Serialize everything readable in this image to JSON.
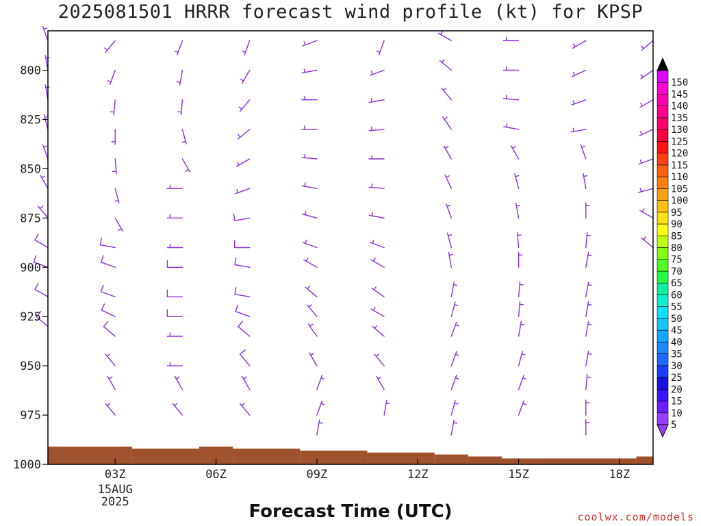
{
  "header": {
    "title": "2025081501 HRRR forecast wind profile (kt) for KPSP",
    "xlabel": "Forecast Time (UTC)",
    "credit": "coolwx.com/models"
  },
  "chart_data": {
    "type": "wind-barb-profile",
    "title": "2025081501 HRRR forecast wind profile (kt) for KPSP",
    "xlabel": "Forecast Time (UTC)",
    "ylabel": "",
    "y_axis": {
      "scale": "pressure (hPa), inverted",
      "range": [
        780,
        1000
      ],
      "ticks": [
        800,
        825,
        850,
        875,
        900,
        925,
        950,
        975,
        1000
      ]
    },
    "x_axis": {
      "range_hours_utc": [
        1,
        19
      ],
      "ticks": [
        {
          "hour": 3,
          "label": "03Z",
          "sublabel": "15AUG",
          "sublabel2": "2025"
        },
        {
          "hour": 6,
          "label": "06Z"
        },
        {
          "hour": 9,
          "label": "09Z"
        },
        {
          "hour": 12,
          "label": "12Z"
        },
        {
          "hour": 15,
          "label": "15Z"
        },
        {
          "hour": 18,
          "label": "18Z"
        }
      ]
    },
    "barb_color": "#8a2be2",
    "ground_color": "#a0522d",
    "surface_pressure": [
      {
        "hour": 1,
        "p": 991
      },
      {
        "hour": 3.5,
        "p": 992
      },
      {
        "hour": 5.5,
        "p": 991
      },
      {
        "hour": 6.5,
        "p": 992
      },
      {
        "hour": 8.5,
        "p": 993
      },
      {
        "hour": 10.5,
        "p": 994
      },
      {
        "hour": 12.5,
        "p": 995
      },
      {
        "hour": 13.5,
        "p": 996
      },
      {
        "hour": 14.5,
        "p": 997
      },
      {
        "hour": 18.5,
        "p": 996
      }
    ],
    "wind_columns": [
      {
        "hour": 1,
        "levels": [
          {
            "p": 785,
            "dir": 340,
            "spd": 5
          },
          {
            "p": 800,
            "dir": 350,
            "spd": 8
          },
          {
            "p": 815,
            "dir": 350,
            "spd": 8
          },
          {
            "p": 830,
            "dir": 345,
            "spd": 8
          },
          {
            "p": 845,
            "dir": 340,
            "spd": 8
          },
          {
            "p": 860,
            "dir": 330,
            "spd": 8
          },
          {
            "p": 875,
            "dir": 320,
            "spd": 8
          },
          {
            "p": 890,
            "dir": 300,
            "spd": 10
          },
          {
            "p": 900,
            "dir": 290,
            "spd": 10
          },
          {
            "p": 915,
            "dir": 300,
            "spd": 10
          },
          {
            "p": 930,
            "dir": 310,
            "spd": 10
          }
        ]
      },
      {
        "hour": 3,
        "levels": [
          {
            "p": 785,
            "dir": 220,
            "spd": 5
          },
          {
            "p": 800,
            "dir": 200,
            "spd": 5
          },
          {
            "p": 815,
            "dir": 185,
            "spd": 5
          },
          {
            "p": 830,
            "dir": 180,
            "spd": 5
          },
          {
            "p": 845,
            "dir": 175,
            "spd": 5
          },
          {
            "p": 860,
            "dir": 165,
            "spd": 5
          },
          {
            "p": 875,
            "dir": 150,
            "spd": 5
          },
          {
            "p": 890,
            "dir": 280,
            "spd": 10
          },
          {
            "p": 900,
            "dir": 290,
            "spd": 10
          },
          {
            "p": 915,
            "dir": 290,
            "spd": 10
          },
          {
            "p": 925,
            "dir": 295,
            "spd": 10
          },
          {
            "p": 935,
            "dir": 310,
            "spd": 10
          },
          {
            "p": 950,
            "dir": 320,
            "spd": 5
          },
          {
            "p": 962,
            "dir": 330,
            "spd": 5
          },
          {
            "p": 975,
            "dir": 320,
            "spd": 5
          }
        ]
      },
      {
        "hour": 5,
        "levels": [
          {
            "p": 785,
            "dir": 200,
            "spd": 5
          },
          {
            "p": 800,
            "dir": 190,
            "spd": 5
          },
          {
            "p": 815,
            "dir": 185,
            "spd": 5
          },
          {
            "p": 830,
            "dir": 165,
            "spd": 5
          },
          {
            "p": 845,
            "dir": 150,
            "spd": 5
          },
          {
            "p": 860,
            "dir": 270,
            "spd": 5
          },
          {
            "p": 875,
            "dir": 270,
            "spd": 5
          },
          {
            "p": 890,
            "dir": 270,
            "spd": 5
          },
          {
            "p": 900,
            "dir": 270,
            "spd": 10
          },
          {
            "p": 915,
            "dir": 270,
            "spd": 10
          },
          {
            "p": 925,
            "dir": 270,
            "spd": 10
          },
          {
            "p": 935,
            "dir": 270,
            "spd": 5
          },
          {
            "p": 950,
            "dir": 270,
            "spd": 5
          },
          {
            "p": 962,
            "dir": 330,
            "spd": 5
          },
          {
            "p": 975,
            "dir": 320,
            "spd": 5
          }
        ]
      },
      {
        "hour": 7,
        "levels": [
          {
            "p": 785,
            "dir": 200,
            "spd": 5
          },
          {
            "p": 800,
            "dir": 210,
            "spd": 5
          },
          {
            "p": 815,
            "dir": 220,
            "spd": 5
          },
          {
            "p": 830,
            "dir": 230,
            "spd": 5
          },
          {
            "p": 845,
            "dir": 240,
            "spd": 5
          },
          {
            "p": 860,
            "dir": 250,
            "spd": 8
          },
          {
            "p": 875,
            "dir": 260,
            "spd": 10
          },
          {
            "p": 890,
            "dir": 270,
            "spd": 10
          },
          {
            "p": 900,
            "dir": 280,
            "spd": 10
          },
          {
            "p": 915,
            "dir": 280,
            "spd": 10
          },
          {
            "p": 925,
            "dir": 290,
            "spd": 10
          },
          {
            "p": 935,
            "dir": 310,
            "spd": 10
          },
          {
            "p": 950,
            "dir": 320,
            "spd": 10
          },
          {
            "p": 962,
            "dir": 330,
            "spd": 5
          },
          {
            "p": 975,
            "dir": 320,
            "spd": 5
          }
        ]
      },
      {
        "hour": 9,
        "levels": [
          {
            "p": 785,
            "dir": 250,
            "spd": 5
          },
          {
            "p": 800,
            "dir": 260,
            "spd": 5
          },
          {
            "p": 815,
            "dir": 270,
            "spd": 5
          },
          {
            "p": 830,
            "dir": 270,
            "spd": 5
          },
          {
            "p": 845,
            "dir": 275,
            "spd": 5
          },
          {
            "p": 860,
            "dir": 280,
            "spd": 5
          },
          {
            "p": 875,
            "dir": 285,
            "spd": 5
          },
          {
            "p": 890,
            "dir": 290,
            "spd": 5
          },
          {
            "p": 900,
            "dir": 300,
            "spd": 5
          },
          {
            "p": 915,
            "dir": 310,
            "spd": 5
          },
          {
            "p": 925,
            "dir": 320,
            "spd": 5
          },
          {
            "p": 935,
            "dir": 325,
            "spd": 5
          },
          {
            "p": 950,
            "dir": 330,
            "spd": 5
          },
          {
            "p": 962,
            "dir": 20,
            "spd": 5
          },
          {
            "p": 975,
            "dir": 20,
            "spd": 5
          },
          {
            "p": 985,
            "dir": 10,
            "spd": 5
          }
        ]
      },
      {
        "hour": 11,
        "levels": [
          {
            "p": 785,
            "dir": 200,
            "spd": 5
          },
          {
            "p": 800,
            "dir": 250,
            "spd": 5
          },
          {
            "p": 815,
            "dir": 260,
            "spd": 5
          },
          {
            "p": 830,
            "dir": 265,
            "spd": 5
          },
          {
            "p": 845,
            "dir": 270,
            "spd": 5
          },
          {
            "p": 860,
            "dir": 275,
            "spd": 5
          },
          {
            "p": 875,
            "dir": 280,
            "spd": 5
          },
          {
            "p": 890,
            "dir": 290,
            "spd": 5
          },
          {
            "p": 900,
            "dir": 300,
            "spd": 5
          },
          {
            "p": 915,
            "dir": 305,
            "spd": 5
          },
          {
            "p": 925,
            "dir": 300,
            "spd": 5
          },
          {
            "p": 935,
            "dir": 310,
            "spd": 5
          },
          {
            "p": 950,
            "dir": 320,
            "spd": 5
          },
          {
            "p": 962,
            "dir": 330,
            "spd": 5
          },
          {
            "p": 975,
            "dir": 10,
            "spd": 5
          }
        ]
      },
      {
        "hour": 13,
        "levels": [
          {
            "p": 785,
            "dir": 300,
            "spd": 5
          },
          {
            "p": 800,
            "dir": 310,
            "spd": 5
          },
          {
            "p": 815,
            "dir": 320,
            "spd": 5
          },
          {
            "p": 830,
            "dir": 325,
            "spd": 5
          },
          {
            "p": 845,
            "dir": 330,
            "spd": 5
          },
          {
            "p": 860,
            "dir": 335,
            "spd": 5
          },
          {
            "p": 875,
            "dir": 340,
            "spd": 5
          },
          {
            "p": 890,
            "dir": 345,
            "spd": 5
          },
          {
            "p": 900,
            "dir": 350,
            "spd": 5
          },
          {
            "p": 915,
            "dir": 10,
            "spd": 5
          },
          {
            "p": 925,
            "dir": 15,
            "spd": 5
          },
          {
            "p": 935,
            "dir": 20,
            "spd": 5
          },
          {
            "p": 950,
            "dir": 20,
            "spd": 5
          },
          {
            "p": 962,
            "dir": 20,
            "spd": 5
          },
          {
            "p": 975,
            "dir": 15,
            "spd": 5
          },
          {
            "p": 985,
            "dir": 10,
            "spd": 5
          }
        ]
      },
      {
        "hour": 15,
        "levels": [
          {
            "p": 785,
            "dir": 270,
            "spd": 5
          },
          {
            "p": 800,
            "dir": 270,
            "spd": 5
          },
          {
            "p": 815,
            "dir": 275,
            "spd": 5
          },
          {
            "p": 830,
            "dir": 280,
            "spd": 5
          },
          {
            "p": 845,
            "dir": 330,
            "spd": 5
          },
          {
            "p": 860,
            "dir": 345,
            "spd": 5
          },
          {
            "p": 875,
            "dir": 350,
            "spd": 5
          },
          {
            "p": 890,
            "dir": 355,
            "spd": 5
          },
          {
            "p": 900,
            "dir": 0,
            "spd": 5
          },
          {
            "p": 915,
            "dir": 5,
            "spd": 5
          },
          {
            "p": 925,
            "dir": 5,
            "spd": 5
          },
          {
            "p": 935,
            "dir": 10,
            "spd": 5
          },
          {
            "p": 950,
            "dir": 15,
            "spd": 5
          },
          {
            "p": 962,
            "dir": 20,
            "spd": 5
          },
          {
            "p": 975,
            "dir": 20,
            "spd": 5
          }
        ]
      },
      {
        "hour": 17,
        "levels": [
          {
            "p": 785,
            "dir": 240,
            "spd": 5
          },
          {
            "p": 800,
            "dir": 245,
            "spd": 5
          },
          {
            "p": 815,
            "dir": 250,
            "spd": 5
          },
          {
            "p": 830,
            "dir": 260,
            "spd": 5
          },
          {
            "p": 845,
            "dir": 340,
            "spd": 5
          },
          {
            "p": 860,
            "dir": 350,
            "spd": 5
          },
          {
            "p": 875,
            "dir": 0,
            "spd": 5
          },
          {
            "p": 890,
            "dir": 5,
            "spd": 5
          },
          {
            "p": 900,
            "dir": 10,
            "spd": 5
          },
          {
            "p": 915,
            "dir": 10,
            "spd": 5
          },
          {
            "p": 925,
            "dir": 10,
            "spd": 5
          },
          {
            "p": 935,
            "dir": 10,
            "spd": 5
          },
          {
            "p": 950,
            "dir": 10,
            "spd": 5
          },
          {
            "p": 962,
            "dir": 5,
            "spd": 5
          },
          {
            "p": 975,
            "dir": 0,
            "spd": 5
          },
          {
            "p": 985,
            "dir": 0,
            "spd": 5
          }
        ]
      },
      {
        "hour": 19,
        "levels": [
          {
            "p": 785,
            "dir": 230,
            "spd": 5
          },
          {
            "p": 800,
            "dir": 235,
            "spd": 5
          },
          {
            "p": 815,
            "dir": 240,
            "spd": 5
          },
          {
            "p": 830,
            "dir": 245,
            "spd": 5
          },
          {
            "p": 845,
            "dir": 250,
            "spd": 5
          },
          {
            "p": 860,
            "dir": 255,
            "spd": 5
          },
          {
            "p": 875,
            "dir": 300,
            "spd": 5
          },
          {
            "p": 890,
            "dir": 310,
            "spd": 5
          }
        ]
      }
    ],
    "colorbar": {
      "labels": [
        "5",
        "10",
        "15",
        "20",
        "25",
        "30",
        "35",
        "40",
        "45",
        "50",
        "55",
        "60",
        "65",
        "70",
        "75",
        "80",
        "85",
        "90",
        "95",
        "100",
        "105",
        "110",
        "115",
        "120",
        "125",
        "130",
        "135",
        "140",
        "145",
        "150"
      ],
      "colors": [
        "#9a3cff",
        "#6a1bff",
        "#3a14ff",
        "#1a10e0",
        "#1a3cff",
        "#1a6aff",
        "#1a8aff",
        "#10a8ff",
        "#10c8ff",
        "#10e0ff",
        "#10f0d0",
        "#10f0a0",
        "#20ff40",
        "#50ff20",
        "#80ff10",
        "#c0ff10",
        "#ffff10",
        "#ffe010",
        "#ffc010",
        "#ffa010",
        "#ff8010",
        "#ff6010",
        "#ff4010",
        "#ff1010",
        "#ff0040",
        "#ff0070",
        "#ff0090",
        "#ff00b0",
        "#ff00d0",
        "#e000ff"
      ],
      "low_triangle_color": "#9a3cff",
      "high_triangle_color": "#000000"
    }
  }
}
